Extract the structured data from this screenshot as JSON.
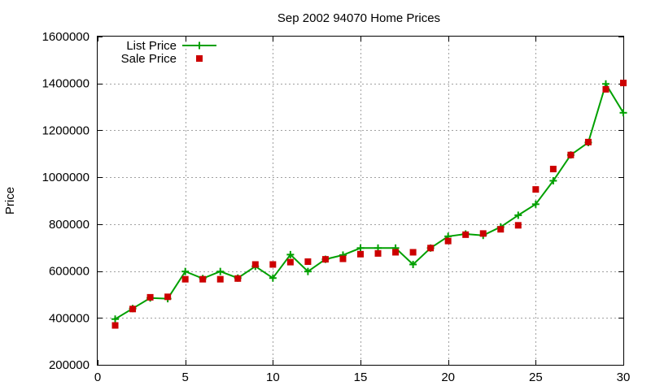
{
  "chart_data": {
    "type": "line",
    "title": "Sep 2002 94070 Home Prices",
    "xlabel": "",
    "ylabel": "Price",
    "xlim": [
      0,
      30
    ],
    "ylim": [
      200000,
      1600000
    ],
    "xticks": [
      "0",
      "5",
      "10",
      "15",
      "20",
      "25",
      "30"
    ],
    "yticks": [
      "200000",
      "400000",
      "600000",
      "800000",
      "1000000",
      "1200000",
      "1400000",
      "1600000"
    ],
    "grid": true,
    "legend_position": "top-left",
    "x": [
      1,
      2,
      3,
      4,
      5,
      6,
      7,
      8,
      9,
      10,
      11,
      12,
      13,
      14,
      15,
      16,
      17,
      18,
      19,
      20,
      21,
      22,
      23,
      24,
      25,
      26,
      27,
      28,
      29,
      30
    ],
    "series": [
      {
        "name": "List Price",
        "style": "line with plus markers",
        "color": "#00a000",
        "values": [
          395000,
          440000,
          485000,
          482000,
          598000,
          568000,
          598000,
          570000,
          620000,
          570000,
          670000,
          598000,
          650000,
          668000,
          698000,
          698000,
          698000,
          628000,
          698000,
          748000,
          758000,
          752000,
          788000,
          838000,
          885000,
          985000,
          1095000,
          1148000,
          1398000,
          1275000
        ]
      },
      {
        "name": "Sale Price",
        "style": "square markers",
        "color": "#cc0000",
        "values": [
          368000,
          438000,
          488000,
          490000,
          565000,
          565000,
          565000,
          568000,
          628000,
          628000,
          638000,
          640000,
          650000,
          652000,
          672000,
          675000,
          680000,
          680000,
          698000,
          728000,
          755000,
          760000,
          778000,
          795000,
          948000,
          1035000,
          1095000,
          1150000,
          1375000,
          1402000
        ]
      }
    ]
  }
}
